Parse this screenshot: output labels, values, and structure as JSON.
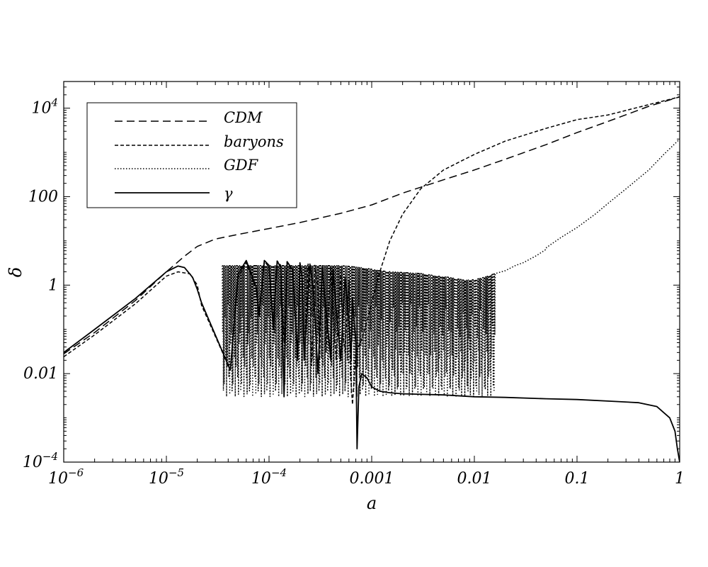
{
  "chart_data": {
    "type": "line",
    "xlabel": "a",
    "ylabel": "δ",
    "xscale": "log",
    "yscale": "log",
    "xlim": [
      1e-06,
      1
    ],
    "ylim": [
      0.0001,
      40000
    ],
    "grid": false,
    "legend_position": "top-left",
    "x_ticks": [
      {
        "value": 1e-06,
        "base": "10",
        "exp": "−6",
        "text": ""
      },
      {
        "value": 1e-05,
        "base": "10",
        "exp": "−5",
        "text": ""
      },
      {
        "value": 0.0001,
        "base": "10",
        "exp": "−4",
        "text": ""
      },
      {
        "value": 0.001,
        "text": "0.001"
      },
      {
        "value": 0.01,
        "text": "0.01"
      },
      {
        "value": 0.1,
        "text": "0.1"
      },
      {
        "value": 1,
        "text": "1"
      }
    ],
    "y_ticks": [
      {
        "value": 0.0001,
        "base": "10",
        "exp": "−4",
        "text": ""
      },
      {
        "value": 0.01,
        "text": "0.01"
      },
      {
        "value": 1,
        "text": "1"
      },
      {
        "value": 100,
        "text": "100"
      },
      {
        "value": 10000,
        "base": "10",
        "exp": "4",
        "text": ""
      }
    ],
    "series": [
      {
        "name": "CDM",
        "style": "long-dash",
        "x": [
          1e-06,
          2e-06,
          5e-06,
          1e-05,
          1.5e-05,
          2e-05,
          3e-05,
          5e-05,
          0.0001,
          0.0002,
          0.0005,
          0.001,
          0.002,
          0.005,
          0.01,
          0.02,
          0.05,
          0.1,
          0.2,
          0.5,
          1
        ],
        "y": [
          0.028,
          0.085,
          0.45,
          2.0,
          4.5,
          7.5,
          11,
          14,
          19,
          26,
          42,
          65,
          120,
          240,
          400,
          700,
          1500,
          2800,
          5000,
          11000,
          18000
        ]
      },
      {
        "name": "baryons",
        "style": "short-dash",
        "x": [
          1e-06,
          2e-06,
          5e-06,
          1e-05,
          1.3e-05,
          1.7e-05,
          2e-05,
          2.2e-05,
          4.2e-05,
          5e-05,
          6e-05,
          7.5e-05,
          8e-05,
          9e-05,
          0.0001,
          0.00011,
          0.00012,
          0.00013,
          0.00014,
          0.00015,
          0.00017,
          0.00019,
          0.0002,
          0.00021,
          0.00022,
          0.00024,
          0.00025,
          0.00026,
          0.00028,
          0.0003,
          0.00031,
          0.00033,
          0.00035,
          0.00036,
          0.0004,
          0.00042,
          0.00045,
          0.0005,
          0.00052,
          0.00055,
          0.0006,
          0.00062,
          0.00065,
          0.0007,
          0.0008,
          0.0009,
          0.001,
          0.0012,
          0.0015,
          0.002,
          0.003,
          0.005,
          0.01,
          0.02,
          0.05,
          0.1,
          0.2,
          0.5,
          1
        ],
        "y": [
          0.024,
          0.075,
          0.38,
          1.6,
          2.0,
          1.8,
          1.0,
          0.35,
          0.012,
          1.5,
          3.2,
          0.8,
          0.2,
          3.4,
          2.6,
          0.15,
          3.5,
          2.8,
          0.05,
          3.3,
          2.0,
          0.03,
          3.2,
          1.5,
          0.02,
          3.0,
          1.2,
          0.015,
          2.8,
          0.8,
          0.02,
          2.6,
          0.5,
          0.03,
          2.4,
          0.3,
          0.02,
          2.0,
          0.1,
          0.03,
          1.2,
          0.01,
          0.002,
          0.03,
          0.06,
          0.15,
          0.4,
          2.0,
          10,
          40,
          150,
          400,
          900,
          1800,
          3500,
          5500,
          7000,
          12000,
          18000
        ]
      },
      {
        "name": "GDF",
        "style": "dotted",
        "x": [
          3.5e-05,
          0.0004,
          0.0005,
          0.0006,
          0.0008,
          0.001,
          0.0012,
          0.0015,
          0.002,
          0.003,
          0.004,
          0.005,
          0.006,
          0.007,
          0.008,
          0.01,
          0.012,
          0.015,
          0.02,
          0.025,
          0.03,
          0.04,
          0.05,
          0.07,
          0.1,
          0.15,
          0.2,
          0.3,
          0.5,
          0.7,
          1
        ],
        "y": [
          3.0,
          3.0,
          3.0,
          2.9,
          2.7,
          2.5,
          2.3,
          2.2,
          2.1,
          2.0,
          1.8,
          1.7,
          1.6,
          1.5,
          1.4,
          1.45,
          1.6,
          1.9,
          2.3,
          3.0,
          3.5,
          5.0,
          7.0,
          12,
          20,
          40,
          70,
          150,
          400,
          900,
          2000
        ],
        "trough_min": 0.003
      },
      {
        "name": "γ",
        "style": "solid",
        "x": [
          1e-06,
          2e-06,
          5e-06,
          1e-05,
          1.3e-05,
          1.5e-05,
          1.8e-05,
          2e-05,
          2.2e-05,
          4.2e-05,
          5e-05,
          6e-05,
          7.5e-05,
          8e-05,
          9e-05,
          0.0001,
          0.00011,
          0.00012,
          0.00013,
          0.00014,
          0.00015,
          0.00017,
          0.00019,
          0.0002,
          0.00021,
          0.00022,
          0.00025,
          0.00027,
          0.0003,
          0.00033,
          0.00035,
          0.0004,
          0.00042,
          0.00045,
          0.0005,
          0.00055,
          0.0006,
          0.00063,
          0.00065,
          0.0007,
          0.00072,
          0.00075,
          0.0008,
          0.0009,
          0.001,
          0.0012,
          0.0015,
          0.002,
          0.005,
          0.01,
          0.02,
          0.05,
          0.1,
          0.2,
          0.4,
          0.6,
          0.8,
          0.9,
          0.95,
          1
        ],
        "y": [
          0.03,
          0.1,
          0.5,
          2.0,
          2.7,
          2.5,
          1.5,
          0.8,
          0.4,
          0.012,
          1.8,
          3.6,
          0.9,
          0.2,
          3.6,
          2.8,
          0.1,
          3.5,
          2.5,
          0.003,
          3.4,
          2.2,
          0.02,
          3.2,
          1.5,
          0.02,
          3.0,
          0.8,
          0.01,
          2.6,
          0.5,
          0.02,
          2.2,
          0.3,
          0.02,
          1.5,
          0.15,
          0.02,
          0.5,
          0.05,
          0.0002,
          0.005,
          0.01,
          0.008,
          0.005,
          0.004,
          0.0037,
          0.0035,
          0.0033,
          0.003,
          0.0029,
          0.0027,
          0.0026,
          0.0024,
          0.0022,
          0.0018,
          0.001,
          0.0005,
          0.0002,
          0.0001
        ]
      }
    ]
  }
}
